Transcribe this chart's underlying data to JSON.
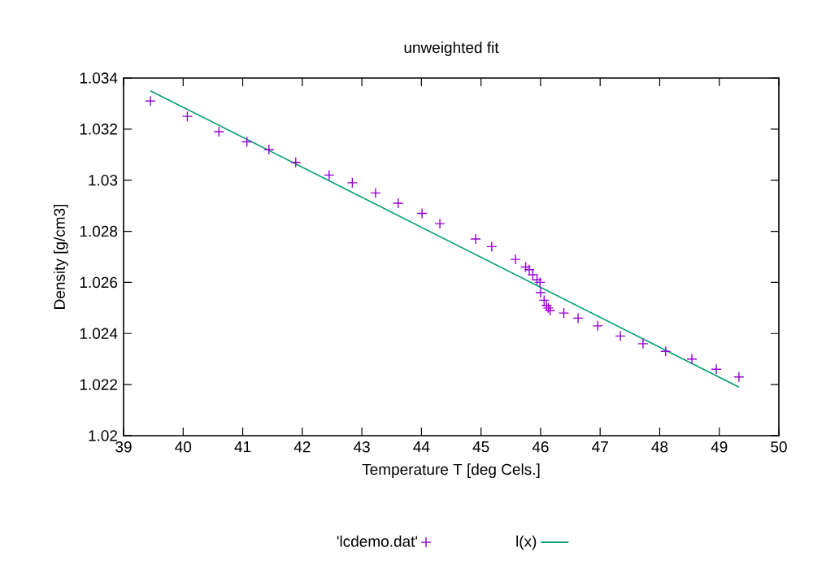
{
  "chart_data": {
    "type": "scatter",
    "title": "unweighted fit",
    "xlabel": "Temperature T  [deg Cels.]",
    "ylabel": "Density [g/cm3]",
    "xlim": [
      39,
      50
    ],
    "xticks": [
      39,
      40,
      41,
      42,
      43,
      44,
      45,
      46,
      47,
      48,
      49,
      50
    ],
    "ylim": [
      1.02,
      1.034
    ],
    "yticks": [
      1.02,
      1.022,
      1.024,
      1.026,
      1.028,
      1.03,
      1.032,
      1.034
    ],
    "grid": false,
    "legend": "bottom",
    "marker": "cross",
    "series": [
      {
        "name": "'lcdemo.dat'",
        "color": "#9400d3",
        "x": [
          39.45,
          40.07,
          40.6,
          41.07,
          41.44,
          41.89,
          42.45,
          42.84,
          43.23,
          43.61,
          44.01,
          44.31,
          44.91,
          45.18,
          45.58,
          45.75,
          45.81,
          45.87,
          45.94,
          45.99,
          46.0,
          46.06,
          46.1,
          46.13,
          46.16,
          46.39,
          46.63,
          46.96,
          47.34,
          47.72,
          48.1,
          48.54,
          48.95,
          49.33
        ],
        "values": [
          1.0331,
          1.0325,
          1.0319,
          1.0315,
          1.0312,
          1.0307,
          1.0302,
          1.0299,
          1.0295,
          1.0291,
          1.0287,
          1.0283,
          1.0277,
          1.0274,
          1.0269,
          1.0266,
          1.0265,
          1.0263,
          1.0261,
          1.026,
          1.0256,
          1.0253,
          1.0251,
          1.025,
          1.0249,
          1.0248,
          1.0246,
          1.0243,
          1.0239,
          1.0236,
          1.0233,
          1.023,
          1.0226,
          1.0223
        ]
      },
      {
        "name": "l(x)",
        "type": "line",
        "marker": "none",
        "line_style": "solid",
        "color": "#009e73",
        "x": [
          39.45,
          49.33
        ],
        "values": [
          1.0335,
          1.0219
        ]
      }
    ]
  }
}
